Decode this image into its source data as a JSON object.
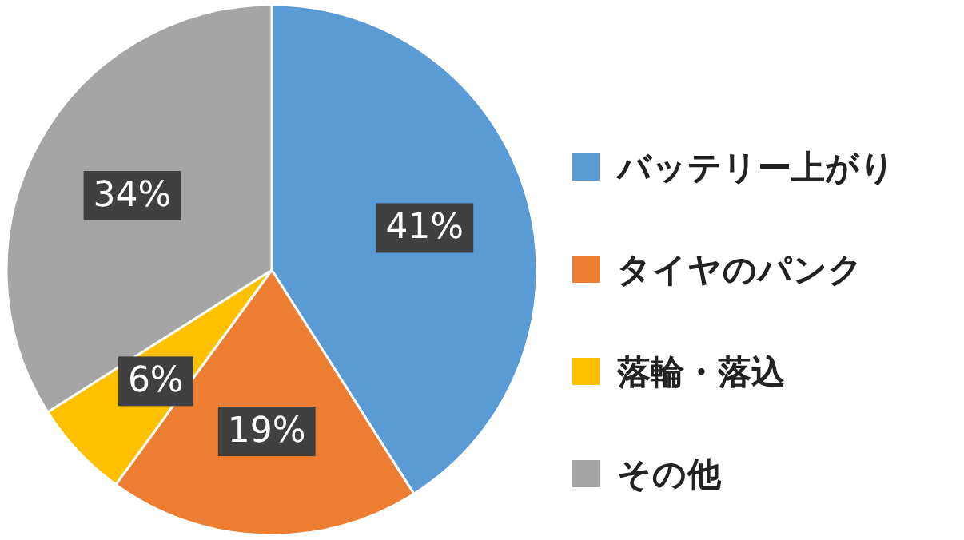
{
  "chart_data": {
    "type": "pie",
    "categories": [
      "バッテリー上がり",
      "タイヤのパンク",
      "落輪・落込",
      "その他"
    ],
    "values": [
      41,
      19,
      6,
      34
    ],
    "colors": [
      "#5b9bd5",
      "#ed7d31",
      "#ffc000",
      "#a5a5a5"
    ],
    "value_labels": [
      "41%",
      "19%",
      "6%",
      "34%"
    ],
    "legend": "right"
  }
}
